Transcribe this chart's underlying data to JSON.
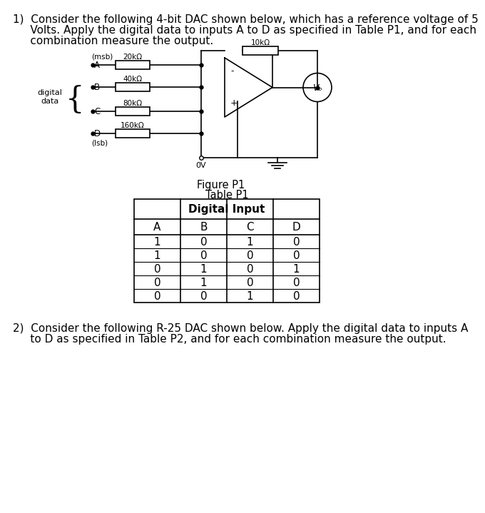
{
  "title1_line1": "1)  Consider the following 4-bit DAC shown below, which has a reference voltage of 5",
  "title1_line2": "     Volts. Apply the digital data to inputs A to D as specified in Table P1, and for each",
  "title1_line3": "     combination measure the output.",
  "figure_label": "Figure P1",
  "table_title": "Table P1",
  "table_subtitle": "Digital Input",
  "table_headers": [
    "A",
    "B",
    "C",
    "D"
  ],
  "table_data": [
    [
      1,
      0,
      1,
      0
    ],
    [
      1,
      0,
      0,
      0
    ],
    [
      0,
      1,
      0,
      1
    ],
    [
      0,
      1,
      0,
      0
    ],
    [
      0,
      0,
      1,
      0
    ]
  ],
  "title2_line1": "2)  Consider the following R-25 DAC shown below. Apply the digital data to inputs A",
  "title2_line2": "     to D as specified in Table P2, and for each combination measure the output.",
  "bg_color": "#ffffff",
  "text_color": "#000000",
  "msb_label": "(msb)",
  "lsb_label": "(lsb)",
  "digital_data_label": "digital\ndata",
  "r1_label": "20kΩ",
  "r2_label": "40kΩ",
  "r3_label": "80kΩ",
  "r4_label": "160kΩ",
  "rf_label": "10kΩ",
  "ov_label": "0V",
  "vo_label": "Vₒ",
  "plus_label": "+",
  "minus_label": "-"
}
